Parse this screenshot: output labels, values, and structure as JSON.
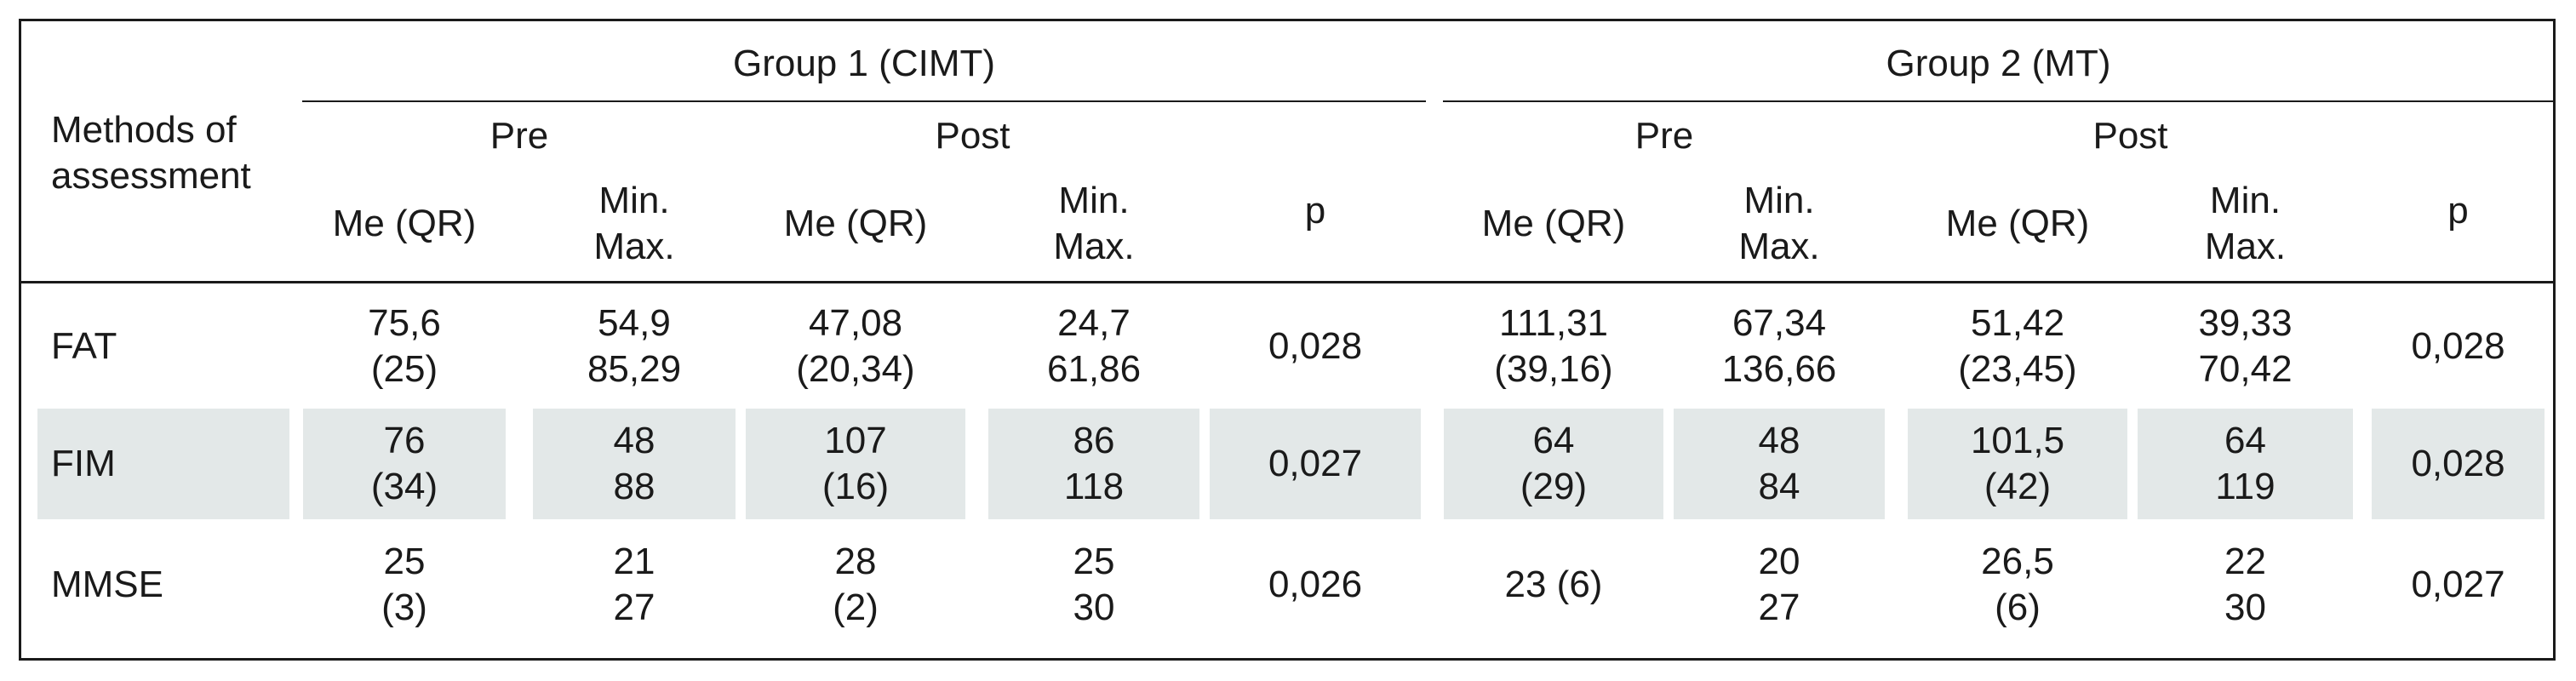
{
  "table": {
    "row_header": [
      "Methods of",
      "assessment"
    ],
    "groups": [
      {
        "label": "Group 1 (CIMT)",
        "phases": [
          "Pre",
          "Post"
        ]
      },
      {
        "label": "Group 2 (MT)",
        "phases": [
          "Pre",
          "Post"
        ]
      }
    ],
    "subheaders": {
      "me": "Me (QR)",
      "minmax": [
        "Min.",
        "Max."
      ],
      "p": "p"
    },
    "rows": [
      {
        "label": "FAT",
        "shaded": false,
        "cells": [
          [
            "75,6",
            "(25)"
          ],
          [
            "54,9",
            "85,29"
          ],
          [
            "47,08",
            "(20,34)"
          ],
          [
            "24,7",
            "61,86"
          ],
          [
            "0,028"
          ],
          [
            "111,31",
            "(39,16)"
          ],
          [
            "67,34",
            "136,66"
          ],
          [
            "51,42",
            "(23,45)"
          ],
          [
            "39,33",
            "70,42"
          ],
          [
            "0,028"
          ]
        ]
      },
      {
        "label": "FIM",
        "shaded": true,
        "cells": [
          [
            "76",
            "(34)"
          ],
          [
            "48",
            "88"
          ],
          [
            "107",
            "(16)"
          ],
          [
            "86",
            "118"
          ],
          [
            "0,027"
          ],
          [
            "64",
            "(29)"
          ],
          [
            "48",
            "84"
          ],
          [
            "101,5",
            "(42)"
          ],
          [
            "64",
            "119"
          ],
          [
            "0,028"
          ]
        ]
      },
      {
        "label": "MMSE",
        "shaded": false,
        "cells": [
          [
            "25",
            "(3)"
          ],
          [
            "21",
            "27"
          ],
          [
            "28",
            "(2)"
          ],
          [
            "25",
            "30"
          ],
          [
            "0,026"
          ],
          [
            "23 (6)"
          ],
          [
            "20",
            "27"
          ],
          [
            "26,5",
            "(6)"
          ],
          [
            "22",
            "30"
          ],
          [
            "0,027"
          ]
        ]
      }
    ]
  }
}
